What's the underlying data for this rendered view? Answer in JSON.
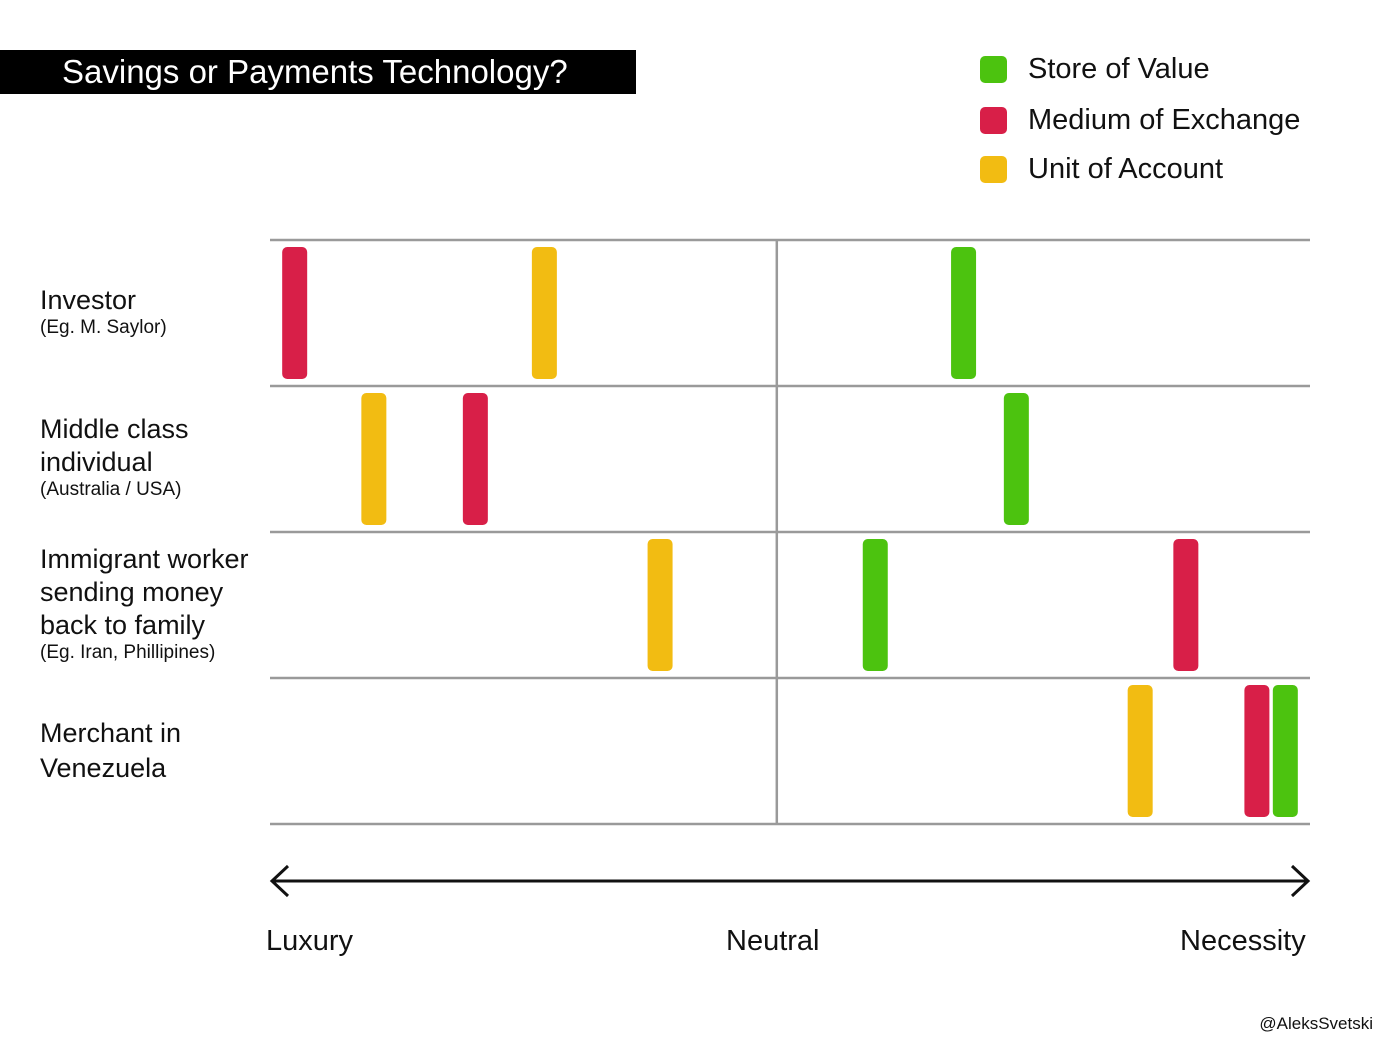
{
  "chart_data": {
    "type": "strip",
    "title": "Savings or Payments Technology?",
    "legend": {
      "placement": "top-right",
      "items": [
        {
          "name": "Store of Value",
          "color": "#4cc30f"
        },
        {
          "name": "Medium of Exchange",
          "color": "#d81f48"
        },
        {
          "name": "Unit of Account",
          "color": "#f2bc12"
        }
      ]
    },
    "x_axis": {
      "labels": [
        "Luxury",
        "Neutral",
        "Necessity"
      ],
      "range": [
        0,
        100
      ],
      "neutral_value": 48.7
    },
    "rows": [
      {
        "name": "Investor",
        "note": "(Eg. M. Saylor)",
        "markers": [
          {
            "series": "Medium of Exchange",
            "value": 1.2
          },
          {
            "series": "Unit of Account",
            "value": 25.8
          },
          {
            "series": "Store of Value",
            "value": 67.1
          }
        ]
      },
      {
        "name": "Middle class\nindividual",
        "note": "(Australia / USA)",
        "markers": [
          {
            "series": "Unit of Account",
            "value": 9.0
          },
          {
            "series": "Medium of Exchange",
            "value": 19.0
          },
          {
            "series": "Store of Value",
            "value": 72.3
          }
        ]
      },
      {
        "name": "Immigrant worker\nsending money\nback to family",
        "note": "(Eg. Iran, Phillipines)",
        "markers": [
          {
            "series": "Unit of Account",
            "value": 37.2
          },
          {
            "series": "Store of Value",
            "value": 58.4
          },
          {
            "series": "Medium of Exchange",
            "value": 89.0
          }
        ]
      },
      {
        "name": "Merchant in\nVenezuela",
        "note": "",
        "markers": [
          {
            "series": "Unit of Account",
            "value": 84.5
          },
          {
            "series": "Medium of Exchange",
            "value": 96.0
          },
          {
            "series": "Store of Value",
            "value": 98.8
          }
        ]
      }
    ]
  },
  "credit": "@AleksSvetski"
}
